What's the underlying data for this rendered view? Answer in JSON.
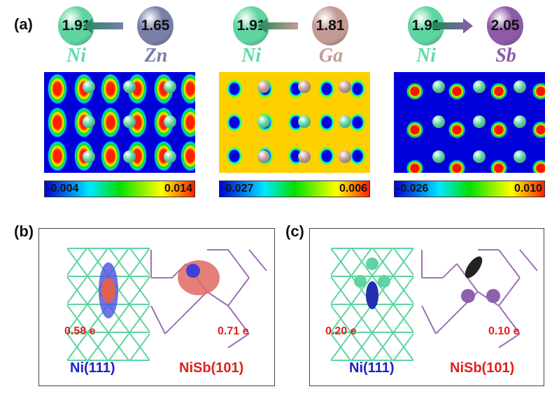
{
  "panel_labels": {
    "a": "(a)",
    "b": "(b)",
    "c": "(c)"
  },
  "pairs": [
    {
      "ni_value": "1.91",
      "other_value": "1.65",
      "ni_label": "Ni",
      "other_label": "Zn",
      "other_color": "#7a7fa8",
      "arrow": "left",
      "colorbar_min": "-0.004",
      "colorbar_max": "0.014"
    },
    {
      "ni_value": "1.91",
      "other_value": "1.81",
      "ni_label": "Ni",
      "other_label": "Ga",
      "other_color": "#c49a94",
      "arrow": "left",
      "colorbar_min": "-0.027",
      "colorbar_max": "0.006"
    },
    {
      "ni_value": "1.91",
      "other_value": "2.05",
      "ni_label": "Ni",
      "other_label": "Sb",
      "other_color": "#8e5aa8",
      "arrow": "right",
      "colorbar_min": "-0.026",
      "colorbar_max": "0.010"
    }
  ],
  "colors": {
    "ni": "#5ed4a0",
    "ni_label": "#5edba8",
    "charge": "#e02020",
    "ni111_label": "#2020d0",
    "nisb_label": "#e02020"
  },
  "panel_b": {
    "charge_ni": "0.58 e",
    "charge_nisb": "0.71 e",
    "surface_ni": "Ni(111)",
    "surface_nisb": "NiSb(101)"
  },
  "panel_c": {
    "charge_ni": "0.20 e",
    "charge_nisb": "0.10 e",
    "surface_ni": "Ni(111)",
    "surface_nisb": "NiSb(101)"
  }
}
